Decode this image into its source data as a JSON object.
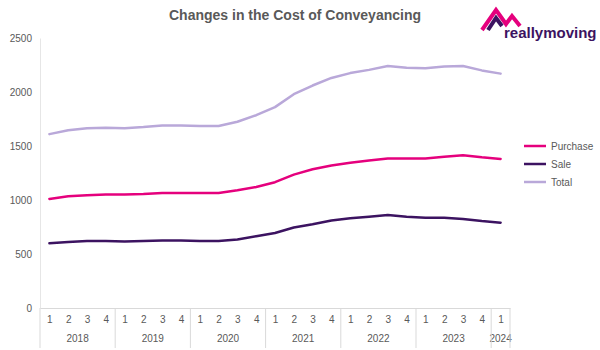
{
  "chart_data": {
    "type": "line",
    "title": "Changes in the Cost of Conveyancing",
    "annotations": [
      "reallymoving"
    ],
    "categories": [
      "1",
      "2",
      "3",
      "4",
      "1",
      "2",
      "3",
      "4",
      "1",
      "2",
      "3",
      "4",
      "1",
      "2",
      "3",
      "4",
      "1",
      "2",
      "3",
      "4",
      "1",
      "2",
      "3",
      "4",
      "1"
    ],
    "category_groups": [
      "2018",
      "2018",
      "2018",
      "2018",
      "2019",
      "2019",
      "2019",
      "2019",
      "2020",
      "2020",
      "2020",
      "2020",
      "2021",
      "2021",
      "2021",
      "2021",
      "2022",
      "2022",
      "2022",
      "2022",
      "2023",
      "2023",
      "2023",
      "2023",
      "2024"
    ],
    "series": [
      {
        "name": "Purchase",
        "color": "#e5007d",
        "values": [
          1010,
          1035,
          1045,
          1050,
          1050,
          1055,
          1065,
          1065,
          1065,
          1065,
          1090,
          1120,
          1165,
          1235,
          1285,
          1320,
          1345,
          1365,
          1385,
          1385,
          1385,
          1400,
          1415,
          1395,
          1380
        ]
      },
      {
        "name": "Sale",
        "color": "#3c1361",
        "values": [
          600,
          610,
          620,
          620,
          615,
          620,
          625,
          625,
          620,
          620,
          635,
          665,
          695,
          745,
          775,
          810,
          830,
          845,
          860,
          845,
          835,
          835,
          825,
          805,
          790
        ]
      },
      {
        "name": "Total",
        "color": "#b9a8d9",
        "values": [
          1610,
          1645,
          1665,
          1670,
          1665,
          1675,
          1690,
          1690,
          1685,
          1685,
          1725,
          1785,
          1860,
          1980,
          2060,
          2130,
          2175,
          2205,
          2240,
          2225,
          2220,
          2235,
          2240,
          2200,
          2170
        ]
      }
    ],
    "ylim": [
      0,
      2500
    ],
    "yticks": [
      0,
      500,
      1000,
      1500,
      2000,
      2500
    ],
    "grid": false,
    "legend": "right"
  }
}
